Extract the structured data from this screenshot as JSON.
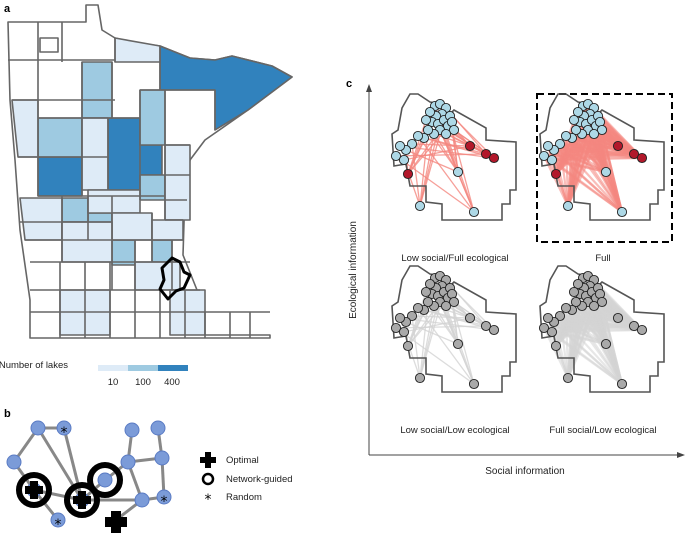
{
  "panels": {
    "a": {
      "letter": "a",
      "legend": {
        "title": "Number of lakes",
        "ticks": [
          "10",
          "100",
          "400"
        ],
        "colors": [
          "#deebf7",
          "#9ecae1",
          "#3182bd"
        ]
      }
    },
    "b": {
      "letter": "b",
      "legend": [
        {
          "icon": "plus-icon",
          "label": "Optimal"
        },
        {
          "icon": "ring-icon",
          "label": "Network-guided"
        },
        {
          "icon": "asterisk-icon",
          "label": "Random"
        }
      ]
    },
    "c": {
      "letter": "c",
      "y_axis_label": "Ecological information",
      "x_axis_label": "Social information",
      "subplots": [
        {
          "label": "Low social/Full ecological"
        },
        {
          "label": "Full"
        },
        {
          "label": "Low social/Low ecological"
        },
        {
          "label": "Full social/Low ecological"
        }
      ]
    }
  },
  "colors": {
    "node_blue": "#add8e6",
    "node_red": "#b2182b",
    "node_grey": "#a9a9a9",
    "edge_red": "#f4877f",
    "edge_grey": "#d3d3d3",
    "network_node": "#7b9bd8",
    "county_outline": "#666666"
  }
}
